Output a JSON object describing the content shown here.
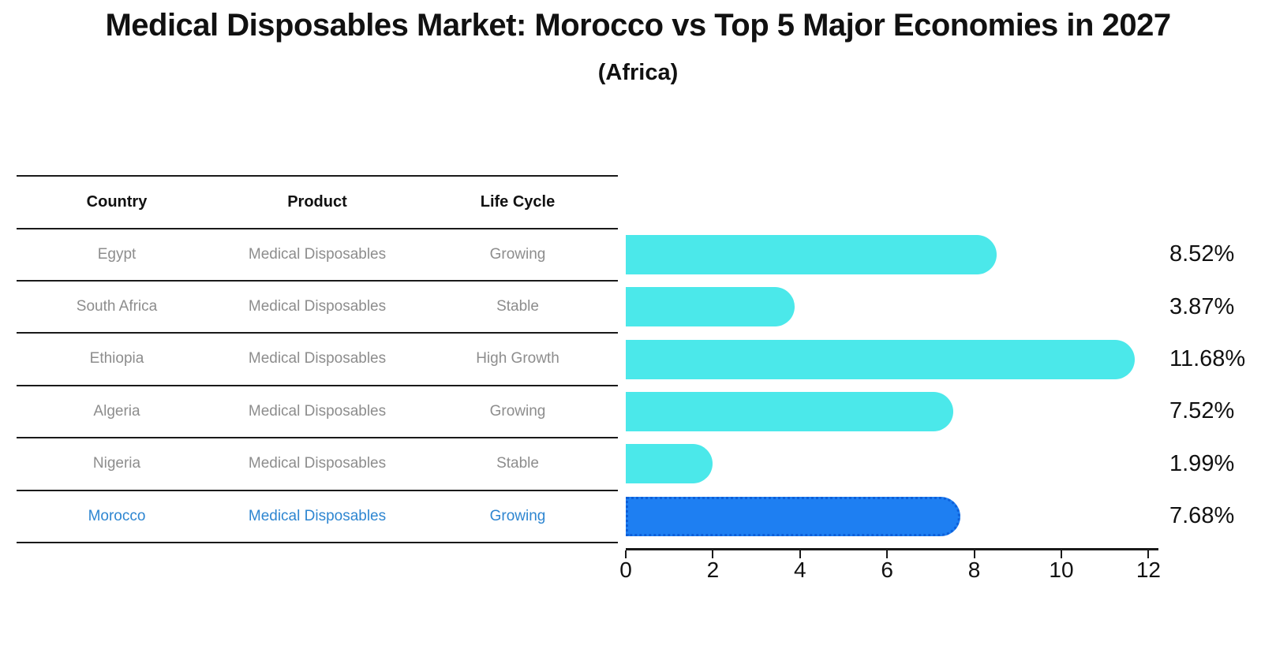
{
  "chart_data": {
    "type": "bar",
    "orientation": "horizontal",
    "title": "Medical Disposables Market: Morocco vs Top 5 Major Economies in 2027",
    "subtitle": "(Africa)",
    "categories": [
      "Egypt",
      "South Africa",
      "Ethiopia",
      "Algeria",
      "Nigeria",
      "Morocco"
    ],
    "values": [
      8.52,
      3.87,
      11.68,
      7.52,
      1.99,
      7.68
    ],
    "value_labels": [
      "8.52%",
      "3.87%",
      "11.68%",
      "7.52%",
      "1.99%",
      "7.68%"
    ],
    "xlabel": "",
    "ylabel": "",
    "xlim": [
      0,
      12
    ],
    "x_ticks": [
      0,
      2,
      4,
      6,
      8,
      10,
      12
    ],
    "grid": false,
    "legend": false,
    "highlight_index": 5
  },
  "table": {
    "columns": [
      "Country",
      "Product",
      "Life Cycle"
    ],
    "rows": [
      {
        "country": "Egypt",
        "product": "Medical Disposables",
        "life_cycle": "Growing",
        "highlight": false
      },
      {
        "country": "South Africa",
        "product": "Medical Disposables",
        "life_cycle": "Stable",
        "highlight": false
      },
      {
        "country": "Ethiopia",
        "product": "Medical Disposables",
        "life_cycle": "High Growth",
        "highlight": false
      },
      {
        "country": "Algeria",
        "product": "Medical Disposables",
        "life_cycle": "Growing",
        "highlight": false
      },
      {
        "country": "Nigeria",
        "product": "Medical Disposables",
        "life_cycle": "Stable",
        "highlight": false
      },
      {
        "country": "Morocco",
        "product": "Medical Disposables",
        "life_cycle": "Growing",
        "highlight": true
      }
    ]
  },
  "colors": {
    "bar_cyan": "#4BE8EA",
    "bar_blue": "#1E7FF2",
    "bar_blue_edge": "#0D5FD9",
    "highlight_text": "#2E86D1",
    "row_text": "#8d8d8d",
    "header_text": "#111111",
    "line": "#1a1a1a"
  }
}
